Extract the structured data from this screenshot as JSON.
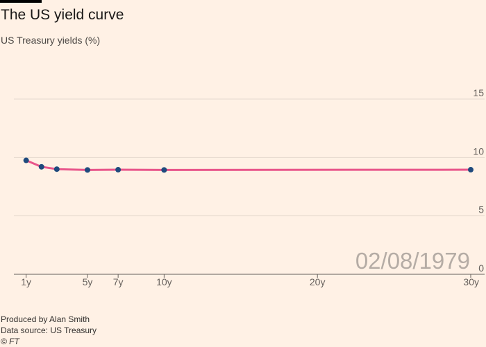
{
  "header": {
    "title": "The US yield curve",
    "subtitle": "US Treasury yields (%)"
  },
  "footer": {
    "producer": "Produced by Alan Smith",
    "source": "Data source: US Treasury",
    "copyright": "© FT"
  },
  "colors": {
    "background": "#fff1e5",
    "line": "#e8558a",
    "point": "#1f4a7d",
    "grid": "#e6d9ce",
    "date": "#b5aca5"
  },
  "chart_data": {
    "type": "line",
    "date_label": "02/08/1979",
    "x": [
      1,
      2,
      3,
      5,
      7,
      10,
      30
    ],
    "x_tick_values": [
      1,
      5,
      7,
      10,
      20,
      30
    ],
    "x_tick_labels": [
      "1y",
      "5y",
      "7y",
      "10y",
      "20y",
      "30y"
    ],
    "xlim": [
      0.2,
      30
    ],
    "series": [
      {
        "values": [
          9.75,
          9.2,
          9.0,
          8.93,
          8.95,
          8.93,
          8.95
        ]
      }
    ],
    "y_ticks": [
      0,
      5,
      10,
      15
    ],
    "ylim": [
      0,
      15
    ],
    "grid": true,
    "y_axis_side": "right"
  }
}
